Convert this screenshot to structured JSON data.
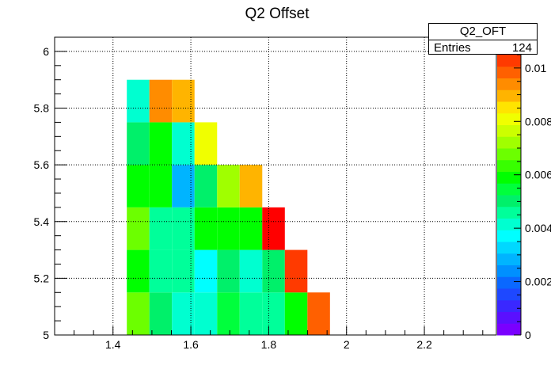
{
  "chart_data": {
    "type": "heatmap",
    "title": "Q2 Offset",
    "xlabel": "",
    "ylabel": "",
    "xlim": [
      1.25,
      2.385
    ],
    "ylim": [
      5.0,
      6.05
    ],
    "x_ticks": [
      "1.4",
      "1.6",
      "1.8",
      "2",
      "2.2"
    ],
    "x_tick_values": [
      1.4,
      1.6,
      1.8,
      2.0,
      2.2
    ],
    "y_ticks": [
      "5",
      "5.2",
      "5.4",
      "5.6",
      "5.8",
      "6"
    ],
    "y_tick_values": [
      5.0,
      5.2,
      5.4,
      5.6,
      5.8,
      6.0
    ],
    "grid": true,
    "bin_width_x": 0.058,
    "bin_height_y": 0.15,
    "x_bin_edges_start": 1.4355,
    "y_bin_edges_start": 5.0,
    "zlim": [
      0,
      0.0105
    ],
    "palette": [
      "#7a00ff",
      "#5a10ff",
      "#3a28ff",
      "#1e48ff",
      "#0a68ff",
      "#0090ff",
      "#00b4ff",
      "#00d8ff",
      "#00ffff",
      "#00ffd0",
      "#00ff9a",
      "#00f06a",
      "#00ff3c",
      "#00ff00",
      "#38ff00",
      "#6cff00",
      "#a0ff00",
      "#ccff00",
      "#f0ff00",
      "#ffe400",
      "#ffb400",
      "#ff8c00",
      "#ff6000",
      "#ff3a00"
    ],
    "z_ticks": [
      "0",
      "0.002",
      "0.004",
      "0.006",
      "0.008",
      "0.01"
    ],
    "z_tick_values": [
      0,
      0.002,
      0.004,
      0.006,
      0.008,
      0.01
    ],
    "cells": [
      {
        "x": 0,
        "y": 0,
        "value": 0.0075,
        "color": "#6cff00"
      },
      {
        "x": 1,
        "y": 0,
        "value": 0.0055,
        "color": "#00f06a"
      },
      {
        "x": 2,
        "y": 0,
        "value": 0.0045,
        "color": "#00ffd0"
      },
      {
        "x": 3,
        "y": 0,
        "value": 0.0045,
        "color": "#00ffd0"
      },
      {
        "x": 4,
        "y": 0,
        "value": 0.006,
        "color": "#00ff3c"
      },
      {
        "x": 5,
        "y": 0,
        "value": 0.0052,
        "color": "#00ff9a"
      },
      {
        "x": 6,
        "y": 0,
        "value": 0.0052,
        "color": "#00ff9a"
      },
      {
        "x": 7,
        "y": 0,
        "value": 0.0065,
        "color": "#00ff00"
      },
      {
        "x": 8,
        "y": 0,
        "value": 0.0096,
        "color": "#ff6000"
      },
      {
        "x": 0,
        "y": 1,
        "value": 0.0065,
        "color": "#00ff00"
      },
      {
        "x": 1,
        "y": 1,
        "value": 0.0052,
        "color": "#00ff9a"
      },
      {
        "x": 2,
        "y": 1,
        "value": 0.0052,
        "color": "#00ff9a"
      },
      {
        "x": 3,
        "y": 1,
        "value": 0.004,
        "color": "#00ffff"
      },
      {
        "x": 4,
        "y": 1,
        "value": 0.0058,
        "color": "#00f06a"
      },
      {
        "x": 5,
        "y": 1,
        "value": 0.0045,
        "color": "#00ffd0"
      },
      {
        "x": 6,
        "y": 1,
        "value": 0.0058,
        "color": "#00f06a"
      },
      {
        "x": 7,
        "y": 1,
        "value": 0.0101,
        "color": "#ff3a00"
      },
      {
        "x": 0,
        "y": 2,
        "value": 0.0075,
        "color": "#6cff00"
      },
      {
        "x": 1,
        "y": 2,
        "value": 0.0052,
        "color": "#00ff9a"
      },
      {
        "x": 2,
        "y": 2,
        "value": 0.0052,
        "color": "#00ff9a"
      },
      {
        "x": 3,
        "y": 2,
        "value": 0.0065,
        "color": "#00ff00"
      },
      {
        "x": 4,
        "y": 2,
        "value": 0.0065,
        "color": "#00ff00"
      },
      {
        "x": 5,
        "y": 2,
        "value": 0.0065,
        "color": "#00ff00"
      },
      {
        "x": 6,
        "y": 2,
        "value": 0.0105,
        "color": "#ff0000"
      },
      {
        "x": 0,
        "y": 3,
        "value": 0.0065,
        "color": "#00ff00"
      },
      {
        "x": 1,
        "y": 3,
        "value": 0.0065,
        "color": "#00ff00"
      },
      {
        "x": 2,
        "y": 3,
        "value": 0.0033,
        "color": "#00b4ff"
      },
      {
        "x": 3,
        "y": 3,
        "value": 0.0058,
        "color": "#00f06a"
      },
      {
        "x": 4,
        "y": 3,
        "value": 0.0078,
        "color": "#a0ff00"
      },
      {
        "x": 5,
        "y": 3,
        "value": 0.0092,
        "color": "#ffb400"
      },
      {
        "x": 0,
        "y": 4,
        "value": 0.0058,
        "color": "#00f06a"
      },
      {
        "x": 1,
        "y": 4,
        "value": 0.0065,
        "color": "#00ff00"
      },
      {
        "x": 2,
        "y": 4,
        "value": 0.0045,
        "color": "#00ffd0"
      },
      {
        "x": 3,
        "y": 4,
        "value": 0.0085,
        "color": "#f0ff00"
      },
      {
        "x": 0,
        "y": 5,
        "value": 0.0045,
        "color": "#00ffd0"
      },
      {
        "x": 1,
        "y": 5,
        "value": 0.0097,
        "color": "#ff8c00"
      },
      {
        "x": 2,
        "y": 5,
        "value": 0.0092,
        "color": "#ffb400"
      }
    ]
  },
  "stats_box": {
    "title": "Q2_OFT",
    "entries_label": "Entries",
    "entries_value": "124"
  }
}
